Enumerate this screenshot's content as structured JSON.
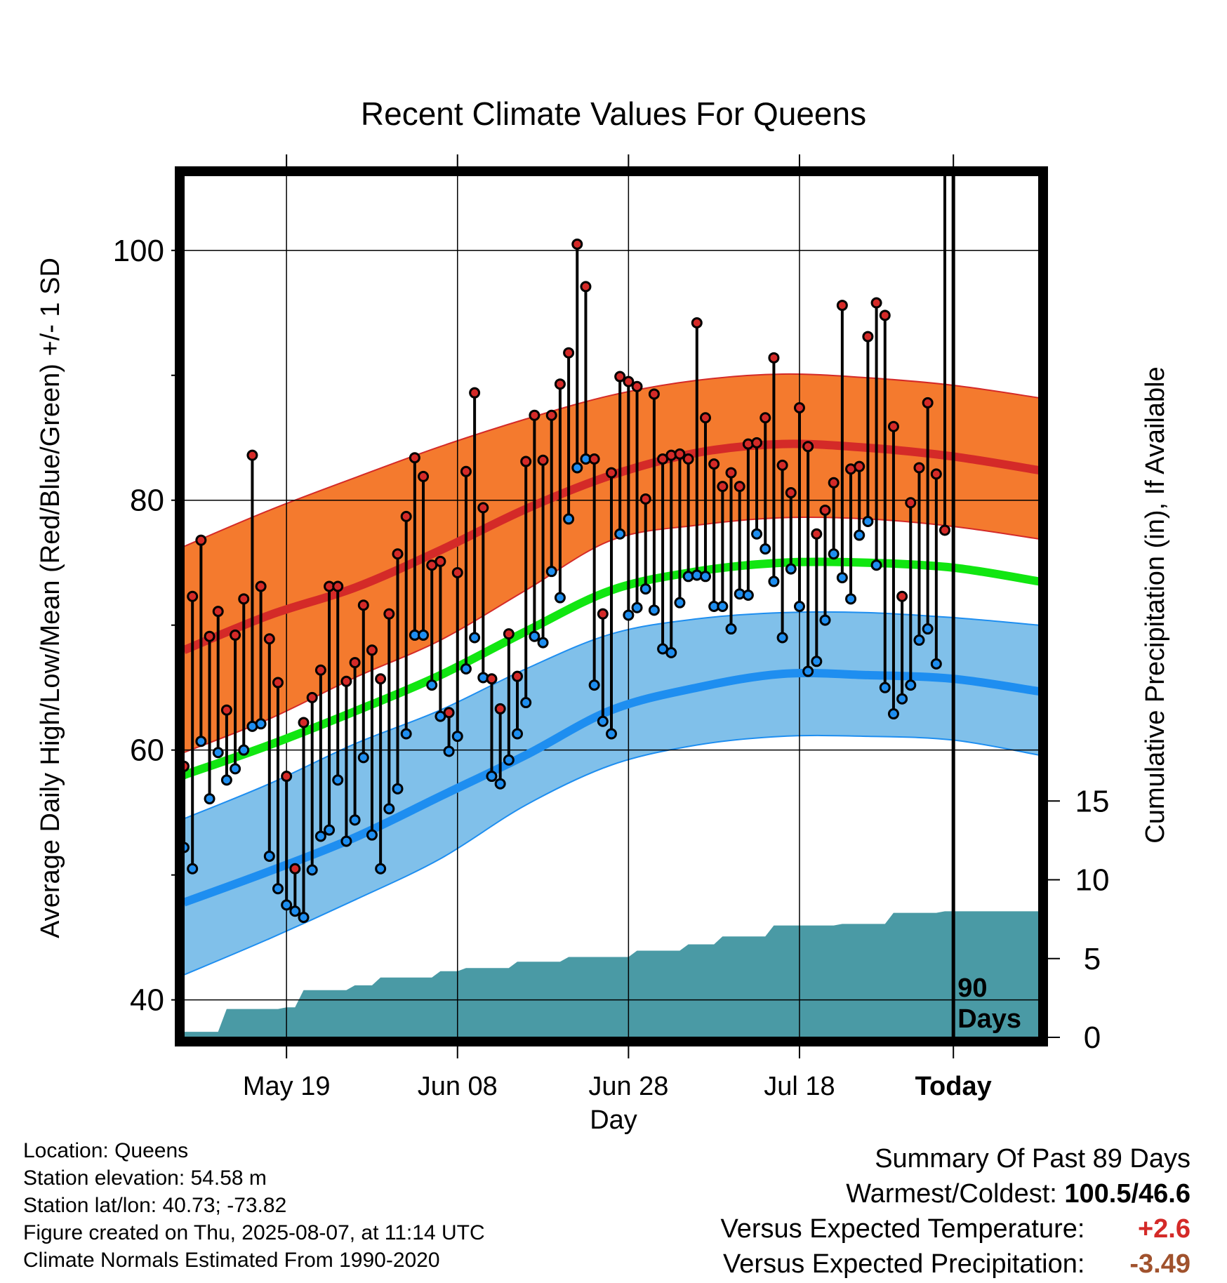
{
  "chart_data": {
    "type": "line",
    "title": "Recent Climate Values For Queens",
    "xlabel": "Day",
    "ylabel": "Average Daily High/Low/Mean (Red/Blue/Green) +/- 1 SD",
    "y2label": "Cumulative Precipitation (in), If Available",
    "x_ticks": [
      "May 19",
      "Jun 08",
      "Jun 28",
      "Jul 18",
      "Today"
    ],
    "y_ticks": [
      40,
      60,
      80,
      100
    ],
    "y2_ticks": [
      0,
      5,
      10,
      15
    ],
    "today_label": [
      "90",
      "Days"
    ],
    "ylim": [
      37,
      106
    ],
    "y2lim": [
      0,
      54.7
    ],
    "xlim_days": [
      0,
      100
    ],
    "today_day": 90,
    "colors": {
      "high_band": "#f47a2e",
      "high_line": "#d42a28",
      "low_band": "#80c0ea",
      "low_line": "#1e8ef0",
      "mean_line": "#11e611",
      "precip": "#4a9aa5",
      "hi_marker": "#d42a28",
      "lo_marker": "#1e8ef0"
    },
    "normals": {
      "days": [
        0,
        10,
        20,
        30,
        40,
        50,
        60,
        70,
        80,
        90,
        100
      ],
      "high_mean": [
        68.0,
        70.8,
        73.0,
        76.0,
        79.3,
        82.0,
        83.8,
        84.5,
        84.2,
        83.5,
        82.4
      ],
      "high_upper": [
        76.3,
        79.2,
        81.8,
        84.3,
        86.5,
        88.4,
        89.6,
        90.1,
        89.8,
        89.2,
        88.2
      ],
      "high_lower": [
        59.8,
        62.5,
        65.8,
        68.8,
        72.8,
        76.8,
        78.0,
        78.6,
        78.5,
        77.9,
        76.9
      ],
      "mean": [
        58.0,
        60.4,
        63.1,
        66.0,
        69.5,
        72.8,
        74.3,
        75.0,
        75.0,
        74.6,
        73.5
      ],
      "low_mean": [
        47.8,
        50.3,
        53.0,
        56.3,
        59.6,
        63.2,
        65.0,
        66.1,
        66.0,
        65.7,
        64.7
      ],
      "low_upper": [
        54.5,
        57.3,
        60.5,
        63.2,
        66.5,
        69.3,
        70.5,
        71.0,
        71.0,
        70.6,
        70.0
      ],
      "low_lower": [
        42.0,
        44.9,
        48.0,
        51.3,
        55.6,
        58.8,
        60.4,
        61.1,
        61.1,
        60.8,
        59.6
      ]
    },
    "highs": [
      58.7,
      72.3,
      76.8,
      69.1,
      71.1,
      63.2,
      69.2,
      72.1,
      83.6,
      73.1,
      68.9,
      65.4,
      57.9,
      50.5,
      62.2,
      64.2,
      66.4,
      73.1,
      73.1,
      65.5,
      67.0,
      71.6,
      68.0,
      65.7,
      70.9,
      75.7,
      78.7,
      83.4,
      81.9,
      74.8,
      75.1,
      63.0,
      74.2,
      82.3,
      88.6,
      79.4,
      65.7,
      63.3,
      69.3,
      65.9,
      83.1,
      86.8,
      83.2,
      86.8,
      89.3,
      91.8,
      100.5,
      97.1,
      83.3,
      70.9,
      82.2,
      89.9,
      89.5,
      89.1,
      80.1,
      88.5,
      83.3,
      83.6,
      83.7,
      83.3,
      94.2,
      86.6,
      82.9,
      81.1,
      82.2,
      81.1,
      84.5,
      84.6,
      86.6,
      91.4,
      82.8,
      80.6,
      87.4,
      84.3,
      77.3,
      79.2,
      81.4,
      95.6,
      82.5,
      82.7,
      93.1,
      95.8,
      94.8,
      85.9,
      72.3,
      79.8,
      82.6,
      87.8,
      82.1,
      77.6
    ],
    "lows": [
      52.2,
      50.5,
      60.7,
      56.1,
      59.8,
      57.6,
      58.5,
      60.0,
      61.9,
      62.1,
      51.5,
      48.9,
      47.6,
      47.1,
      46.6,
      50.4,
      53.1,
      53.6,
      57.6,
      52.7,
      54.4,
      59.4,
      53.2,
      50.5,
      55.3,
      56.9,
      61.3,
      69.2,
      69.2,
      65.2,
      62.7,
      59.9,
      61.1,
      66.5,
      69.0,
      65.8,
      57.9,
      57.3,
      59.2,
      61.3,
      63.8,
      69.1,
      68.6,
      74.3,
      72.2,
      78.5,
      82.6,
      83.3,
      65.2,
      62.3,
      61.3,
      77.3,
      70.8,
      71.4,
      72.9,
      71.2,
      68.1,
      67.8,
      71.8,
      73.9,
      74.0,
      73.9,
      71.5,
      71.5,
      69.7,
      72.5,
      72.4,
      77.3,
      76.1,
      73.5,
      69.0,
      74.5,
      71.5,
      66.3,
      67.1,
      70.4,
      75.7,
      73.8,
      72.1,
      77.2,
      78.3,
      74.8,
      65.0,
      62.9,
      64.1,
      65.2,
      68.8,
      69.7,
      66.9
    ],
    "cum_precip": {
      "days": [
        0,
        1,
        2,
        3,
        4,
        5,
        6,
        7,
        8,
        9,
        10,
        11,
        12,
        13,
        14,
        15,
        16,
        17,
        18,
        19,
        20,
        21,
        22,
        23,
        24,
        25,
        26,
        27,
        28,
        29,
        30,
        31,
        32,
        33,
        34,
        35,
        36,
        37,
        38,
        39,
        40,
        41,
        42,
        43,
        44,
        45,
        46,
        47,
        48,
        49,
        50,
        51,
        52,
        53,
        54,
        55,
        56,
        57,
        58,
        59,
        60,
        61,
        62,
        63,
        64,
        65,
        66,
        67,
        68,
        69,
        70,
        71,
        72,
        73,
        74,
        75,
        76,
        77,
        78,
        79,
        80,
        81,
        82,
        83,
        84,
        85,
        86,
        87,
        88,
        89,
        90,
        91,
        92,
        93,
        94,
        95,
        96,
        97,
        98,
        99,
        100
      ],
      "values": [
        0.35,
        0.35,
        0.35,
        0.35,
        0.35,
        1.8,
        1.8,
        1.8,
        1.8,
        1.8,
        1.8,
        1.8,
        1.9,
        1.9,
        3.0,
        3.0,
        3.0,
        3.0,
        3.0,
        3.0,
        3.3,
        3.3,
        3.3,
        3.8,
        3.8,
        3.8,
        3.8,
        3.8,
        3.8,
        3.8,
        4.2,
        4.2,
        4.2,
        4.4,
        4.4,
        4.4,
        4.4,
        4.4,
        4.4,
        4.8,
        4.8,
        4.8,
        4.8,
        4.8,
        4.8,
        5.1,
        5.1,
        5.1,
        5.1,
        5.1,
        5.1,
        5.1,
        5.1,
        5.5,
        5.5,
        5.5,
        5.5,
        5.5,
        5.5,
        5.9,
        5.9,
        5.9,
        5.9,
        6.4,
        6.4,
        6.4,
        6.4,
        6.4,
        6.4,
        7.1,
        7.1,
        7.1,
        7.1,
        7.1,
        7.1,
        7.1,
        7.1,
        7.2,
        7.2,
        7.2,
        7.2,
        7.2,
        7.2,
        7.9,
        7.9,
        7.9,
        7.9,
        7.9,
        7.9,
        8.0,
        8.0,
        8.0,
        8.0,
        8.0,
        8.0,
        8.0,
        8.0,
        8.0,
        8.0,
        8.0,
        8.0
      ]
    }
  },
  "footer": {
    "location": "Location: Queens",
    "elevation": "Station elevation: 54.58 m",
    "latlon": "Station lat/lon: 40.73; -73.82",
    "created": "Figure created on Thu, 2025-08-07, at 11:14 UTC",
    "normals_note": "Climate Normals Estimated From 1990-2020"
  },
  "summary": {
    "heading": "Summary Of Past 89 Days",
    "warm_cold_label": "Warmest/Coldest:",
    "warm_cold_value": "100.5/46.6",
    "temp_label": "Versus Expected Temperature:",
    "temp_value": "+2.6",
    "temp_color": "#d42a28",
    "precip_label": "Versus Expected Precipitation:",
    "precip_value": "-3.49",
    "precip_color": "#a0522d"
  }
}
